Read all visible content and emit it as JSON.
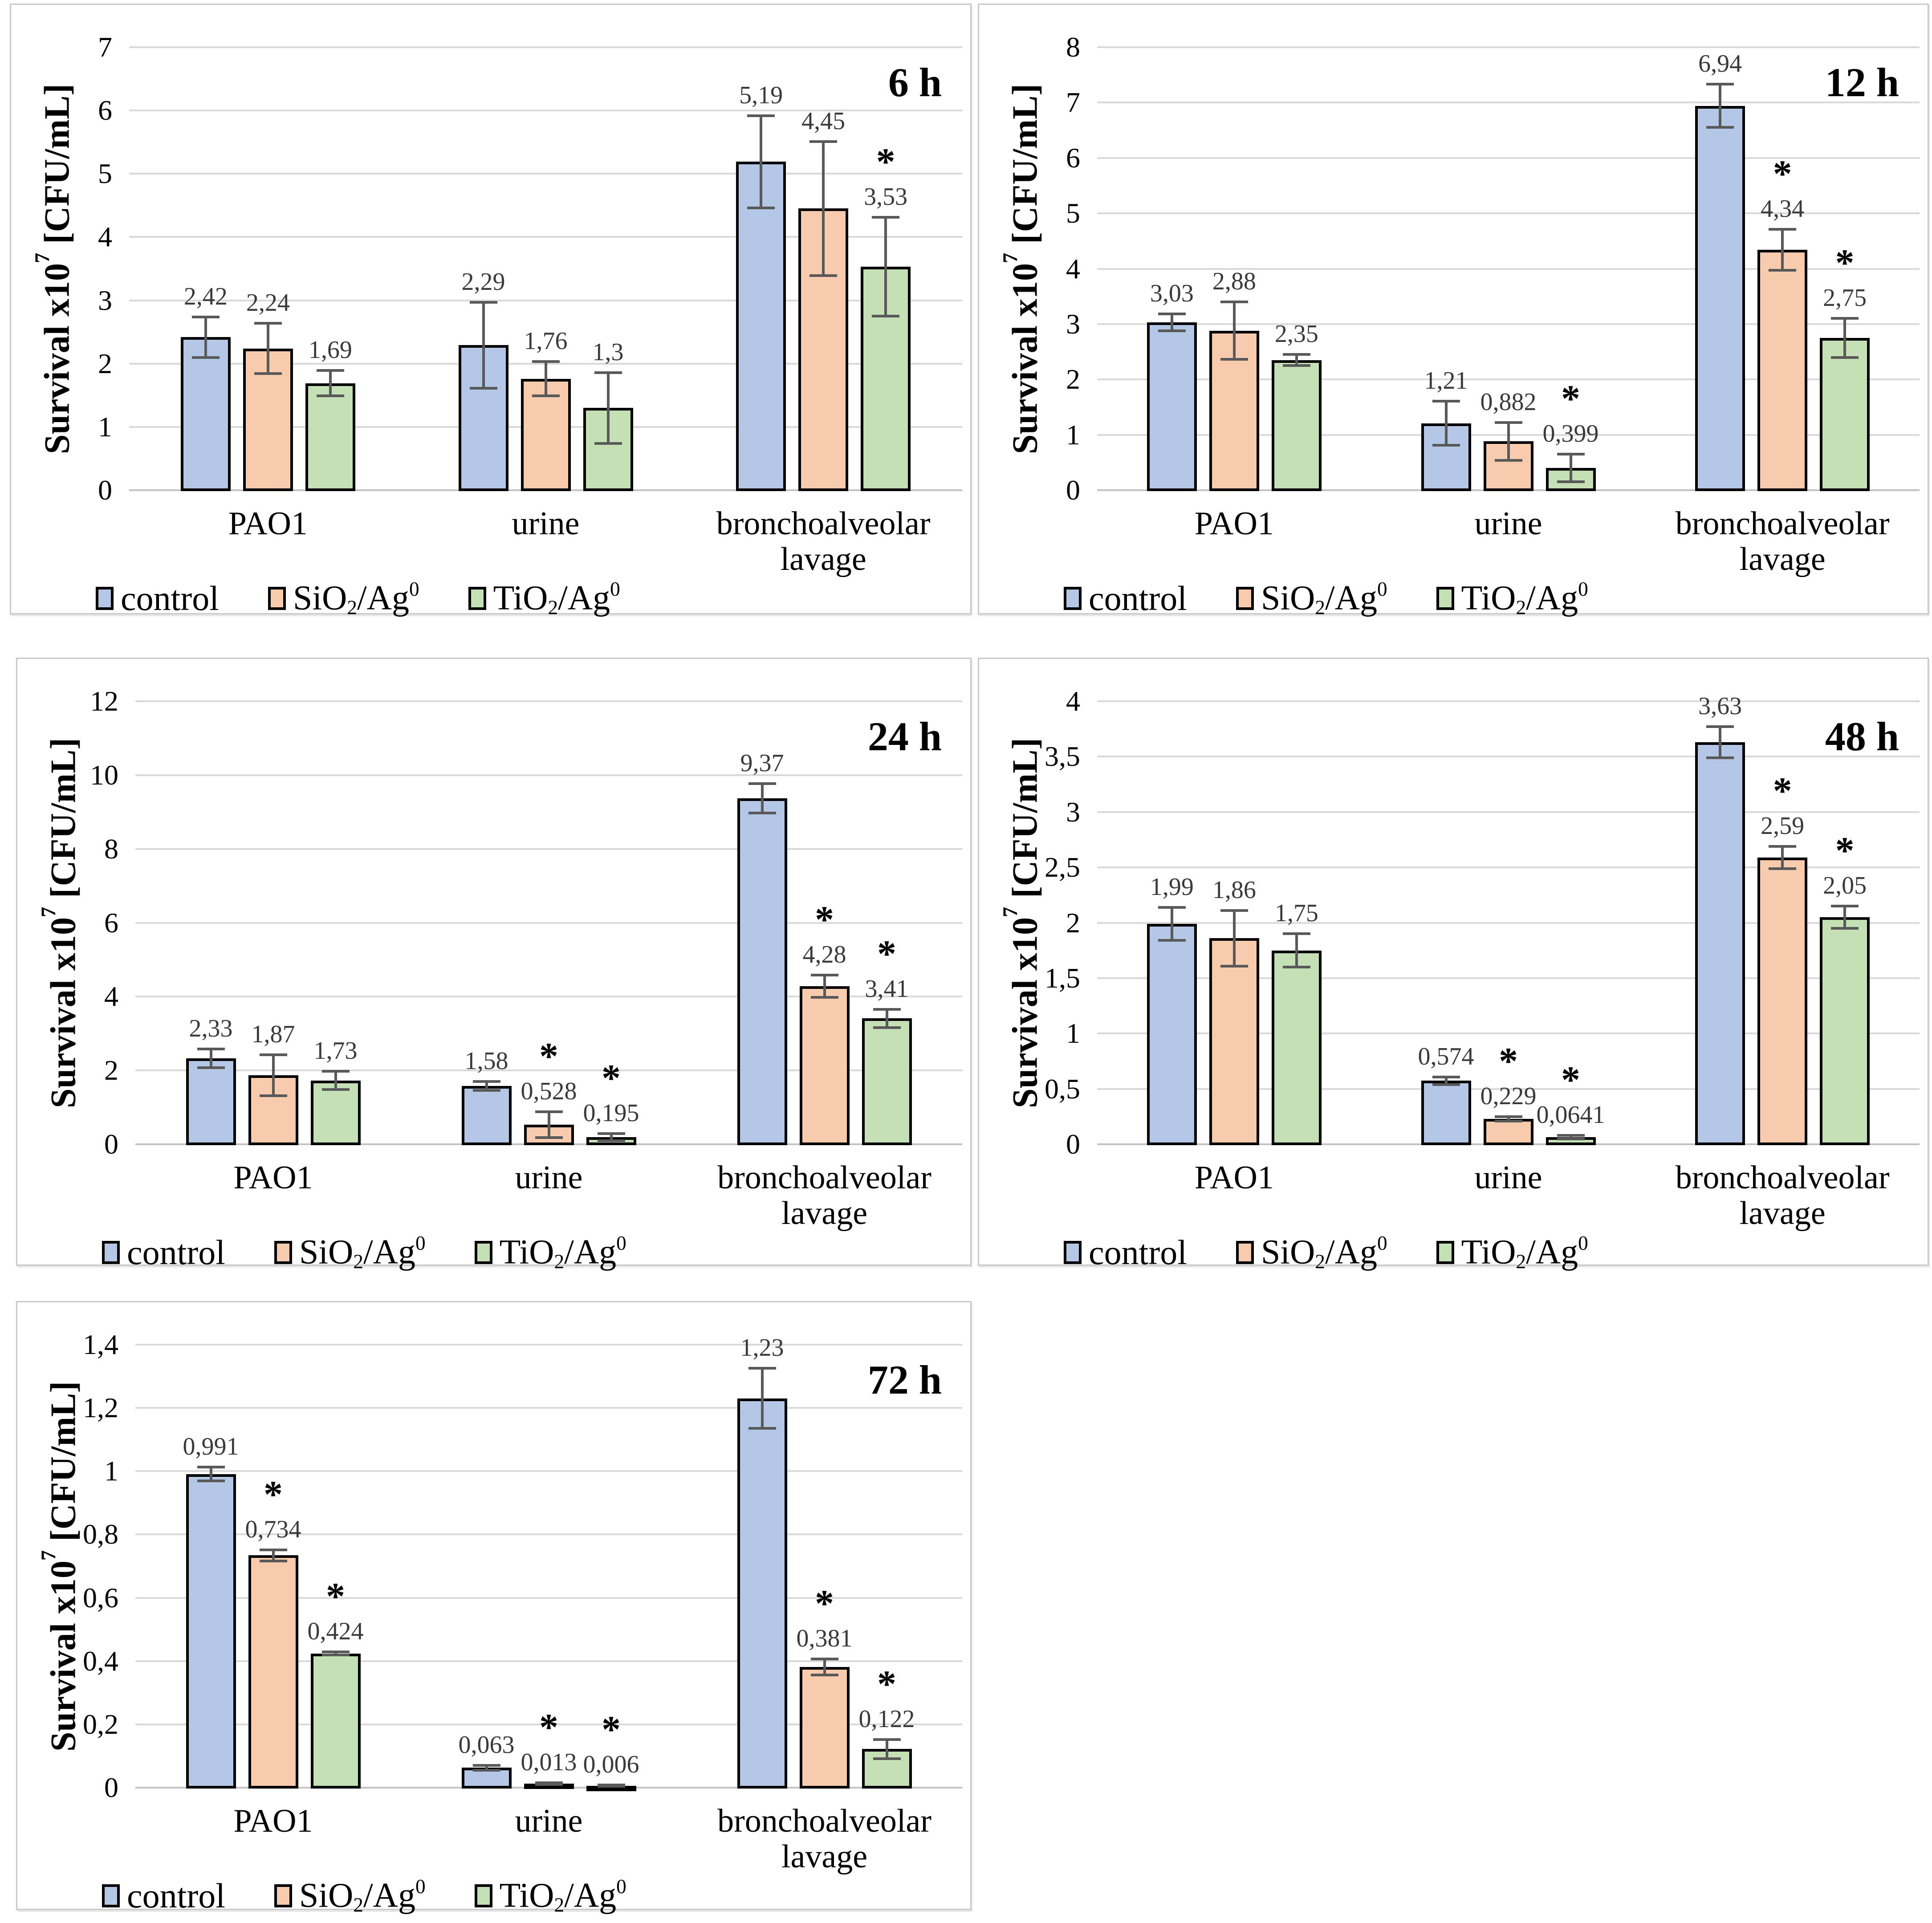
{
  "figure": {
    "description": "Five bar charts of bacterial survival over time",
    "time_labels": [
      "6 h",
      "12 h",
      "24 h",
      "48 h",
      "72 h"
    ],
    "ylabel_text": "Survival x10⁷ [CFU/mL]",
    "ylabel_parts": [
      {
        "style": "normal",
        "text": "Survival x10"
      },
      {
        "style": "sup",
        "text": "7"
      },
      {
        "style": "normal",
        "text": " [CFU/mL]"
      }
    ],
    "legend_parts": [
      [
        {
          "style": "normal",
          "text": "control"
        }
      ],
      [
        {
          "style": "normal",
          "text": "SiO"
        },
        {
          "style": "sub",
          "text": "2"
        },
        {
          "style": "normal",
          "text": "/Ag"
        },
        {
          "style": "sup",
          "text": "0"
        }
      ],
      [
        {
          "style": "normal",
          "text": "TiO"
        },
        {
          "style": "sub",
          "text": "2"
        },
        {
          "style": "normal",
          "text": "/Ag"
        },
        {
          "style": "sup",
          "text": "0"
        }
      ]
    ],
    "significance_marker": "*"
  },
  "colors": {
    "control": "#b4c7e7",
    "sio2_ag": "#f8cbad",
    "tio2_ag": "#c5e0b4",
    "bar_border": "#000000",
    "error_bar": "#595959",
    "gridline": "#d9d9d9",
    "value_label": "#3a3a3a",
    "panel_border": "#c9c9c9"
  },
  "chart_data": [
    {
      "type": "bar",
      "title": "6 h",
      "ylabel": "Survival x10⁷ [CFU/mL]",
      "categories": [
        "PAO1",
        "urine",
        "bronchoalveolar lavage"
      ],
      "ylim": [
        0,
        7
      ],
      "yticks": [
        "0",
        "1",
        "2",
        "3",
        "4",
        "5",
        "6",
        "7"
      ],
      "grid": true,
      "legend_position": "bottom",
      "series": [
        {
          "name": "control",
          "values": [
            2.42,
            2.29,
            5.19
          ],
          "labels": [
            "2,42",
            "2,29",
            "5,19"
          ],
          "errors": [
            0.32,
            0.68,
            0.73
          ],
          "sig": [
            false,
            false,
            false
          ]
        },
        {
          "name": "SiO2/Ag0",
          "values": [
            2.24,
            1.76,
            4.45
          ],
          "labels": [
            "2,24",
            "1,76",
            "4,45"
          ],
          "errors": [
            0.4,
            0.27,
            1.06
          ],
          "sig": [
            false,
            false,
            false
          ]
        },
        {
          "name": "TiO2/Ag0",
          "values": [
            1.69,
            1.3,
            3.53
          ],
          "labels": [
            "1,69",
            "1,3",
            "3,53"
          ],
          "errors": [
            0.2,
            0.56,
            0.78
          ],
          "sig": [
            false,
            false,
            true
          ]
        }
      ]
    },
    {
      "type": "bar",
      "title": "12 h",
      "ylabel": "Survival x10⁷ [CFU/mL]",
      "categories": [
        "PAO1",
        "urine",
        "bronchoalveolar lavage"
      ],
      "ylim": [
        0,
        8
      ],
      "yticks": [
        "0",
        "1",
        "2",
        "3",
        "4",
        "5",
        "6",
        "7",
        "8"
      ],
      "grid": true,
      "legend_position": "bottom",
      "series": [
        {
          "name": "control",
          "values": [
            3.03,
            1.21,
            6.94
          ],
          "labels": [
            "3,03",
            "1,21",
            "6,94"
          ],
          "errors": [
            0.15,
            0.4,
            0.39
          ],
          "sig": [
            false,
            false,
            false
          ]
        },
        {
          "name": "SiO2/Ag0",
          "values": [
            2.88,
            0.882,
            4.34
          ],
          "labels": [
            "2,88",
            "0,882",
            "4,34"
          ],
          "errors": [
            0.52,
            0.34,
            0.37
          ],
          "sig": [
            false,
            false,
            true
          ]
        },
        {
          "name": "TiO2/Ag0",
          "values": [
            2.35,
            0.399,
            2.75
          ],
          "labels": [
            "2,35",
            "0,399",
            "2,75"
          ],
          "errors": [
            0.1,
            0.25,
            0.35
          ],
          "sig": [
            false,
            true,
            true
          ]
        }
      ]
    },
    {
      "type": "bar",
      "title": "24 h",
      "ylabel": "Survival x10⁷ [CFU/mL]",
      "categories": [
        "PAO1",
        "urine",
        "bronchoalveolar lavage"
      ],
      "ylim": [
        0,
        12
      ],
      "yticks": [
        "0",
        "2",
        "4",
        "6",
        "8",
        "10",
        "12"
      ],
      "grid": true,
      "legend_position": "bottom",
      "series": [
        {
          "name": "control",
          "values": [
            2.33,
            1.58,
            9.37
          ],
          "labels": [
            "2,33",
            "1,58",
            "9,37"
          ],
          "errors": [
            0.25,
            0.12,
            0.4
          ],
          "sig": [
            false,
            false,
            false
          ]
        },
        {
          "name": "SiO2/Ag0",
          "values": [
            1.87,
            0.528,
            4.28
          ],
          "labels": [
            "1,87",
            "0,528",
            "4,28"
          ],
          "errors": [
            0.55,
            0.35,
            0.3
          ],
          "sig": [
            false,
            true,
            true
          ]
        },
        {
          "name": "TiO2/Ag0",
          "values": [
            1.73,
            0.195,
            3.41
          ],
          "labels": [
            "1,73",
            "0,195",
            "3,41"
          ],
          "errors": [
            0.25,
            0.1,
            0.25
          ],
          "sig": [
            false,
            true,
            true
          ]
        }
      ]
    },
    {
      "type": "bar",
      "title": "48 h",
      "ylabel": "Survival x10⁷ [CFU/mL]",
      "categories": [
        "PAO1",
        "urine",
        "bronchoalveolar lavage"
      ],
      "ylim": [
        0,
        4
      ],
      "yticks": [
        "0",
        "0,5",
        "1",
        "1,5",
        "2",
        "2,5",
        "3",
        "3,5",
        "4"
      ],
      "grid": true,
      "legend_position": "bottom",
      "series": [
        {
          "name": "control",
          "values": [
            1.99,
            0.574,
            3.63
          ],
          "labels": [
            "1,99",
            "0,574",
            "3,63"
          ],
          "errors": [
            0.15,
            0.035,
            0.14
          ],
          "sig": [
            false,
            false,
            false
          ]
        },
        {
          "name": "SiO2/Ag0",
          "values": [
            1.86,
            0.229,
            2.59
          ],
          "labels": [
            "1,86",
            "0,229",
            "2,59"
          ],
          "errors": [
            0.25,
            0.02,
            0.1
          ],
          "sig": [
            false,
            true,
            true
          ]
        },
        {
          "name": "TiO2/Ag0",
          "values": [
            1.75,
            0.0641,
            2.05
          ],
          "labels": [
            "1,75",
            "0,0641",
            "2,05"
          ],
          "errors": [
            0.15,
            0.015,
            0.1
          ],
          "sig": [
            false,
            true,
            true
          ]
        }
      ]
    },
    {
      "type": "bar",
      "title": "72 h",
      "ylabel": "Survival x10⁷ [CFU/mL]",
      "categories": [
        "PAO1",
        "urine",
        "bronchoalveolar lavage"
      ],
      "ylim": [
        0,
        1.4
      ],
      "yticks": [
        "0",
        "0,2",
        "0,4",
        "0,6",
        "0,8",
        "1",
        "1,2",
        "1,4"
      ],
      "grid": true,
      "legend_position": "bottom",
      "series": [
        {
          "name": "control",
          "values": [
            0.991,
            0.063,
            1.23
          ],
          "labels": [
            "0,991",
            "0,063",
            "1,23"
          ],
          "errors": [
            0.022,
            0.008,
            0.095
          ],
          "sig": [
            false,
            false,
            false
          ]
        },
        {
          "name": "SiO2/Ag0",
          "values": [
            0.734,
            0.013,
            0.381
          ],
          "labels": [
            "0,734",
            "0,013",
            "0,381"
          ],
          "errors": [
            0.018,
            0.003,
            0.025
          ],
          "sig": [
            true,
            true,
            true
          ]
        },
        {
          "name": "TiO2/Ag0",
          "values": [
            0.424,
            0.006,
            0.122
          ],
          "labels": [
            "0,424",
            "0,006",
            "0,122"
          ],
          "errors": [
            0.005,
            0.002,
            0.03
          ],
          "sig": [
            true,
            true,
            true
          ]
        }
      ]
    }
  ]
}
